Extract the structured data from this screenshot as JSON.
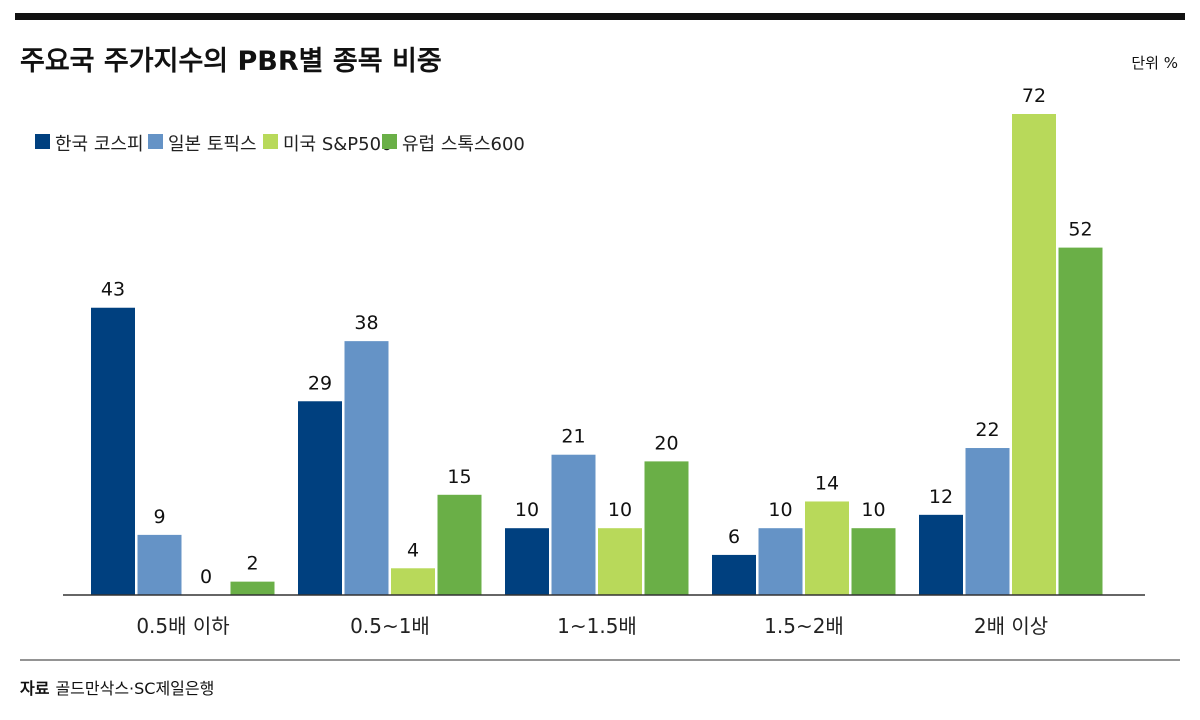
{
  "chart_data": {
    "type": "bar",
    "title": "주요국 주가지수의 PBR별 종목 비중",
    "unit_label": "단위 %",
    "categories": [
      "0.5배 이하",
      "0.5~1배",
      "1~1.5배",
      "1.5~2배",
      "2배 이상"
    ],
    "series": [
      {
        "name": "한국 코스피",
        "color": "#00407f",
        "values": [
          43,
          29,
          10,
          6,
          12
        ]
      },
      {
        "name": "일본 토픽스",
        "color": "#6593c6",
        "values": [
          9,
          38,
          21,
          10,
          22
        ]
      },
      {
        "name": "미국 S&P500",
        "color": "#b8d95a",
        "values": [
          0,
          4,
          10,
          14,
          72
        ]
      },
      {
        "name": "유럽 스톡스600",
        "color": "#6aaf47",
        "values": [
          2,
          15,
          20,
          10,
          52
        ]
      }
    ],
    "ylim": [
      0,
      75
    ],
    "grid": false,
    "legend_position": "top-left",
    "source_label": "자료",
    "source_text": "골드만삭스·SC제일은행"
  }
}
